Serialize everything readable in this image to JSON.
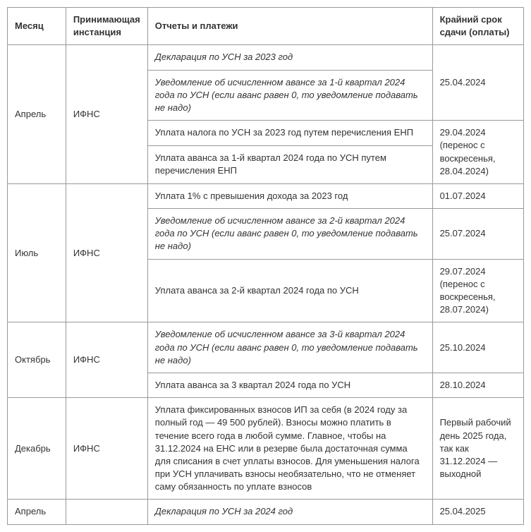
{
  "columns": [
    "Месяц",
    "Принимающая инстанция",
    "Отчеты и платежи",
    "Крайний срок сдачи (оплаты)"
  ],
  "cells": {
    "april_month": "Апрель",
    "april_agency": "ИФНС",
    "april_r1": "Декларация по УСН за 2023 год",
    "april_r2": "Уведомление об исчисленном авансе за 1-й квартал 2024 года по УСН (если аванс равен 0, то уведомление подавать не надо)",
    "april_d1": "25.04.2024",
    "april_r3": "Уплата налога по УСН за 2023 год путем перечисления ЕНП",
    "april_r4": "Уплата аванса за 1-й квартал 2024 года по УСН путем перечисления ЕНП",
    "april_d2": "29.04.2024 (перенос с воскресенья, 28.04.2024)",
    "july_month": "Июль",
    "july_agency": "ИФНС",
    "july_r1": "Уплата 1% с превышения дохода за 2023 год",
    "july_d1": "01.07.2024",
    "july_r2": "Уведомление об исчисленном авансе за 2-й квартал 2024 года по УСН (если аванс равен 0, то уведомление подавать не надо)",
    "july_d2": "25.07.2024",
    "july_r3": "Уплата аванса за 2-й квартал 2024 года по УСН",
    "july_d3": "29.07.2024 (перенос с воскресенья, 28.07.2024)",
    "oct_month": "Октябрь",
    "oct_agency": "ИФНС",
    "oct_r1": "Уведомление об исчисленном авансе за 3-й квартал 2024 года по УСН (если аванс равен 0, то уведомление подавать не надо)",
    "oct_d1": "25.10.2024",
    "oct_r2": "Уплата аванса за 3 квартал 2024 года по УСН",
    "oct_d2": "28.10.2024",
    "dec_month": "Декабрь",
    "dec_agency": "ИФНС",
    "dec_r1": "Уплата фиксированных взносов ИП за себя (в 2024 году за полный год — 49 500 рублей). Взносы можно платить в течение всего года в любой сумме. Главное, чтобы на 31.12.2024 на ЕНС или в резерве была достаточная сумма для списания в счет уплаты взносов. Для уменьшения налога при УСН уплачивать взносы необязательно, что не отменяет саму обязанность по уплате взносов",
    "dec_d1": "Первый рабочий день 2025 года, так как 31.12.2024 — выходной",
    "apr2_month": "Апрель",
    "apr2_r1": "Декларация по УСН за 2024 год",
    "apr2_d1": "25.04.2025"
  }
}
